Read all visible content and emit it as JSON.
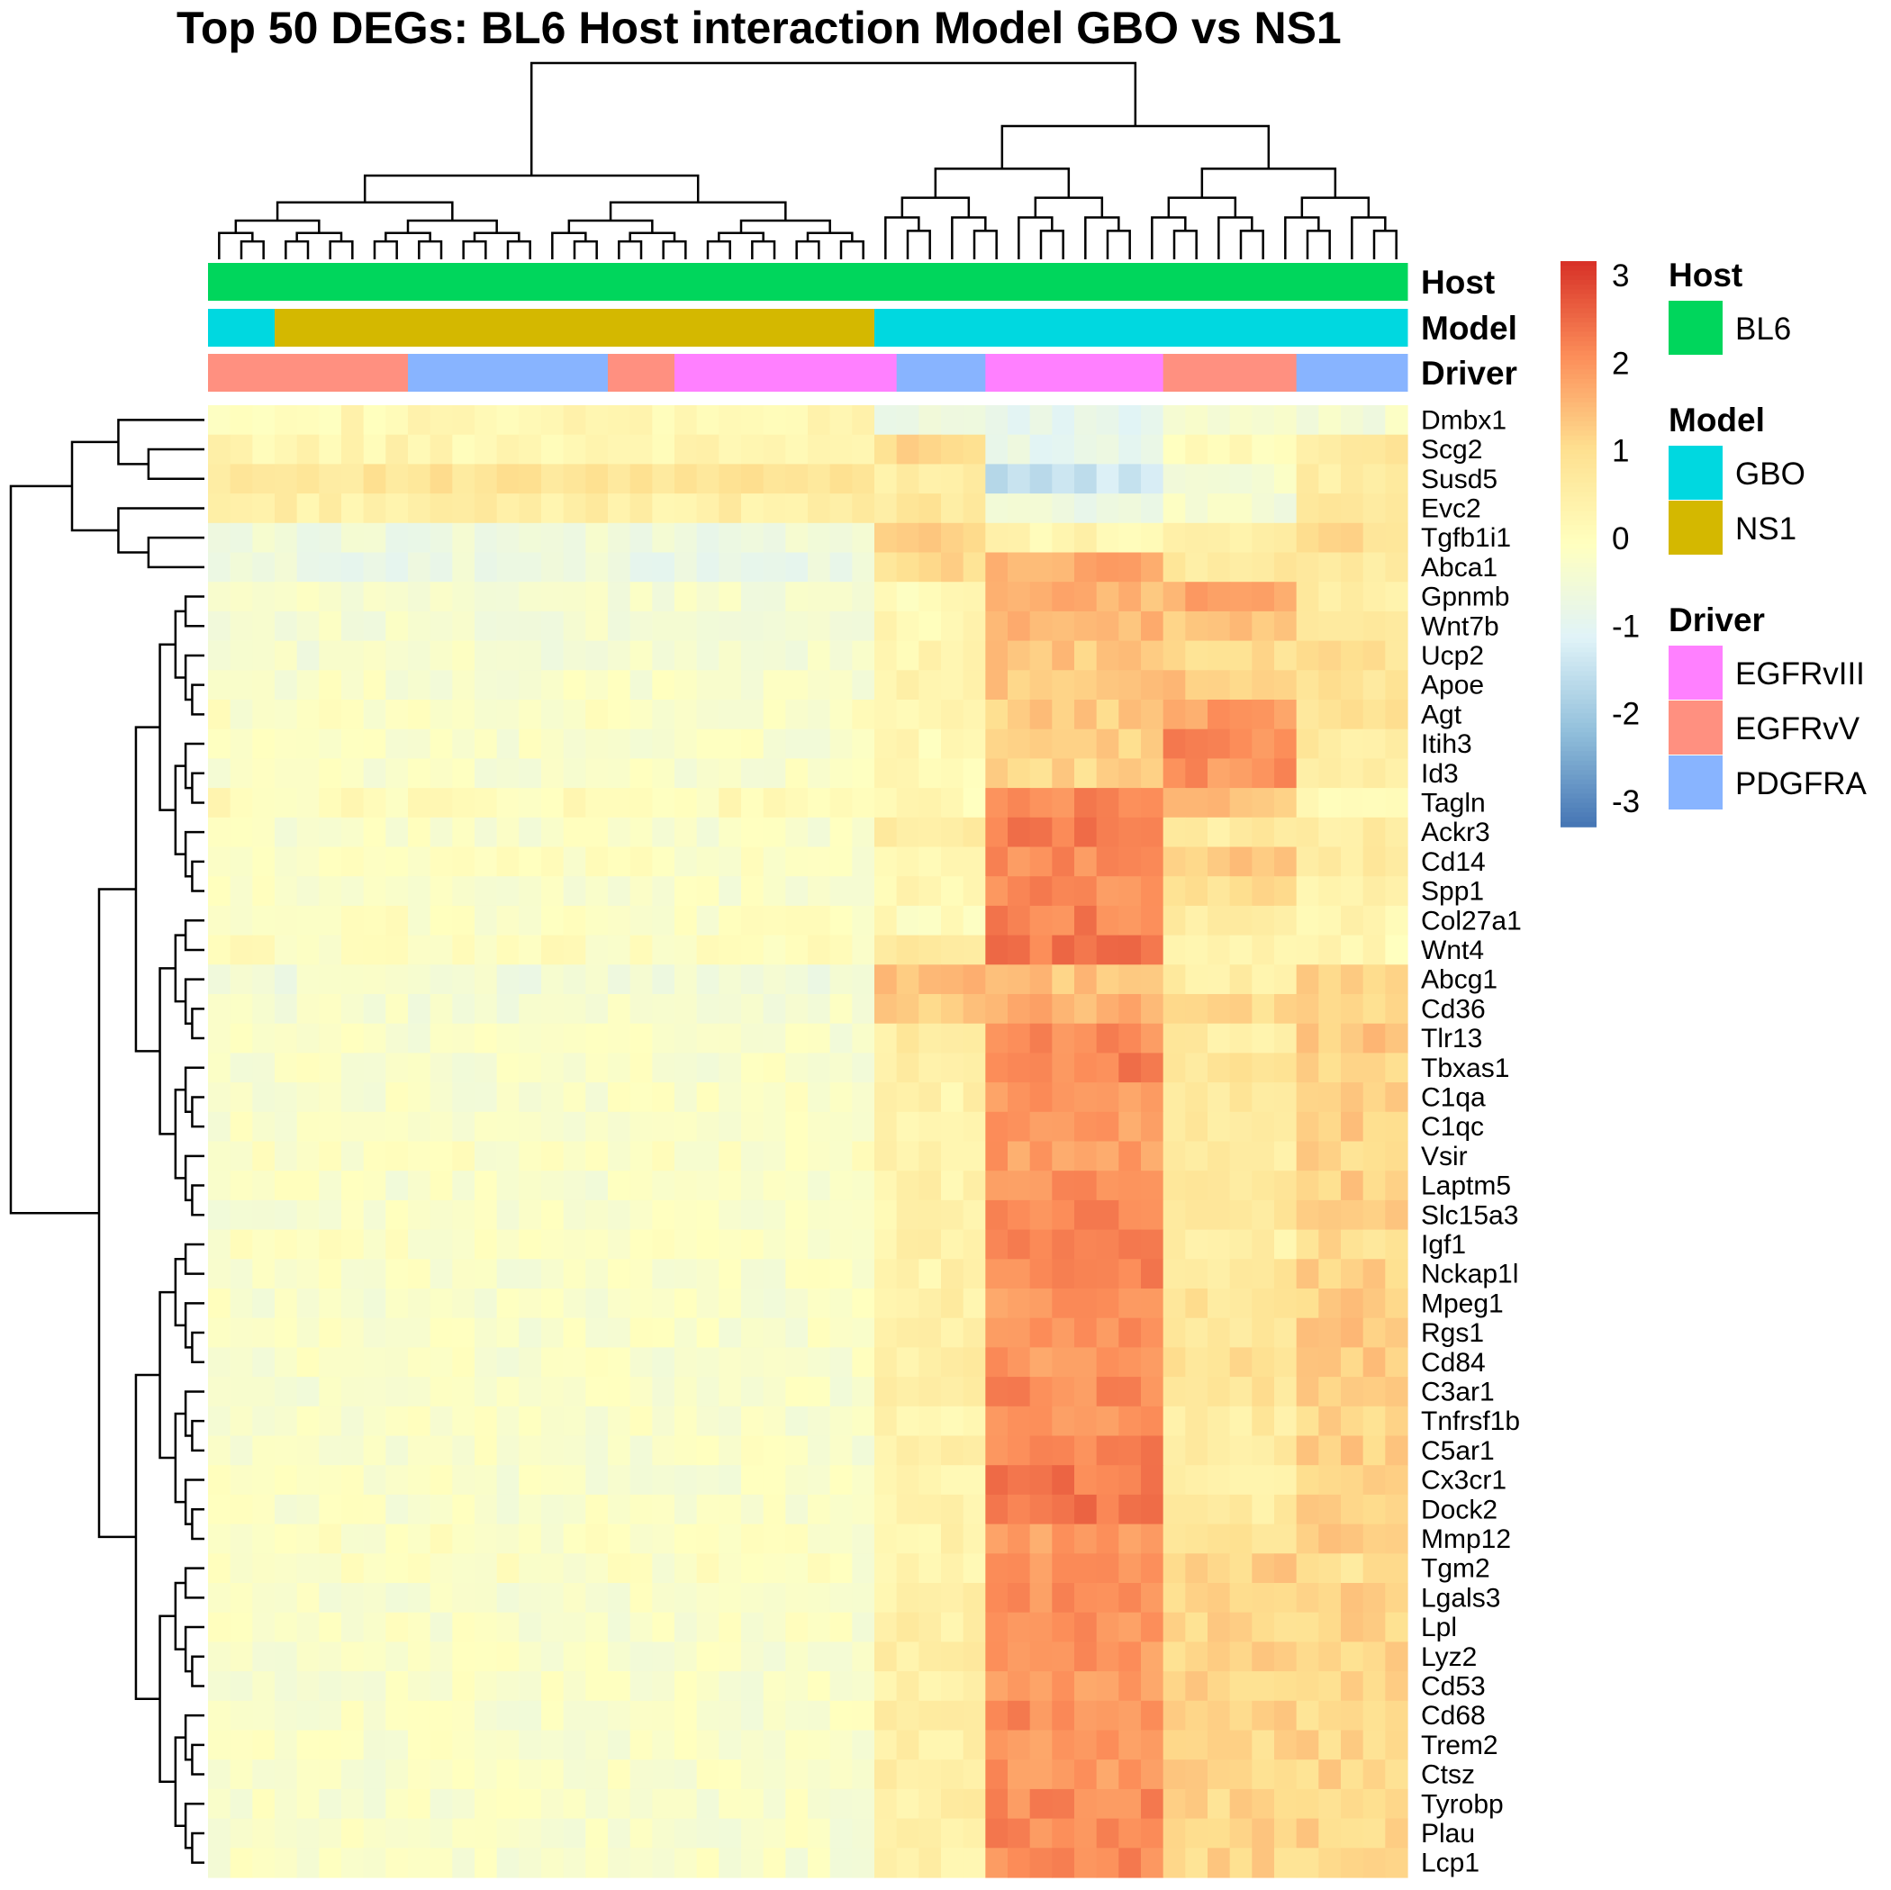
{
  "chart_data": {
    "type": "heatmap",
    "title": "Top 50 DEGs: BL6 Host interaction Model GBO vs NS1",
    "rows": [
      "Dmbx1",
      "Scg2",
      "Susd5",
      "Evc2",
      "Tgfb1i1",
      "Abca1",
      "Gpnmb",
      "Wnt7b",
      "Ucp2",
      "Apoe",
      "Agt",
      "Itih3",
      "Id3",
      "Tagln",
      "Ackr3",
      "Cd14",
      "Spp1",
      "Col27a1",
      "Wnt4",
      "Abcg1",
      "Cd36",
      "Tlr13",
      "Tbxas1",
      "C1qa",
      "C1qc",
      "Vsir",
      "Laptm5",
      "Slc15a3",
      "Igf1",
      "Nckap1l",
      "Mpeg1",
      "Rgs1",
      "Cd84",
      "C3ar1",
      "Tnfrsf1b",
      "C5ar1",
      "Cx3cr1",
      "Dock2",
      "Mmp12",
      "Tgm2",
      "Lgals3",
      "Lpl",
      "Lyz2",
      "Cd53",
      "Cd68",
      "Trem2",
      "Ctsz",
      "Tyrobp",
      "Plau",
      "Lcp1"
    ],
    "n_columns": 54,
    "color_scale": {
      "range": [
        -3,
        3
      ],
      "ticks": [
        "3",
        "2",
        "1",
        "0",
        "-1",
        "-2",
        "-3"
      ],
      "colors": [
        "#4575b4",
        "#91bfdb",
        "#e0f3f8",
        "#ffffbf",
        "#fee090",
        "#fc8d59",
        "#d73027"
      ]
    },
    "annotation_tracks": [
      "Host",
      "Model",
      "Driver"
    ],
    "column_annotations": {
      "Host": [
        {
          "label": "BL6",
          "from": 0,
          "to": 54
        }
      ],
      "Model": [
        {
          "label": "GBO",
          "from": 0,
          "to": 3
        },
        {
          "label": "NS1",
          "from": 3,
          "to": 30
        },
        {
          "label": "GBO",
          "from": 30,
          "to": 54
        }
      ],
      "Driver": [
        {
          "label": "EGFRvV",
          "from": 0,
          "to": 9
        },
        {
          "label": "PDGFRA",
          "from": 9,
          "to": 18
        },
        {
          "label": "EGFRvV",
          "from": 18,
          "to": 21
        },
        {
          "label": "EGFRvIII",
          "from": 21,
          "to": 31
        },
        {
          "label": "PDGFRA",
          "from": 31,
          "to": 35
        },
        {
          "label": "EGFRvIII",
          "from": 35,
          "to": 43
        },
        {
          "label": "EGFRvV",
          "from": 43,
          "to": 49
        },
        {
          "label": "PDGFRA",
          "from": 49,
          "to": 54
        }
      ]
    },
    "annotation_legend": [
      {
        "title": "Host",
        "items": [
          {
            "label": "BL6",
            "color": "#00d65c"
          }
        ]
      },
      {
        "title": "Model",
        "items": [
          {
            "label": "GBO",
            "color": "#00d8e0"
          },
          {
            "label": "NS1",
            "color": "#d4b800"
          }
        ]
      },
      {
        "title": "Driver",
        "items": [
          {
            "label": "EGFRvIII",
            "color": "#ff80ff"
          },
          {
            "label": "EGFRvV",
            "color": "#ff9080"
          },
          {
            "label": "PDGFRA",
            "color": "#88b4ff"
          }
        ]
      }
    ],
    "block_means": {
      "column_groups": [
        [
          0,
          30
        ],
        [
          30,
          35
        ],
        [
          35,
          43
        ],
        [
          43,
          49
        ],
        [
          49,
          54
        ]
      ],
      "values": [
        [
          0.2,
          -0.6,
          -0.8,
          -0.3,
          -0.3
        ],
        [
          0.3,
          1.0,
          -0.7,
          0.2,
          0.7
        ],
        [
          0.8,
          0.6,
          -1.3,
          -0.3,
          0.5
        ],
        [
          0.5,
          0.7,
          -0.6,
          -0.3,
          0.8
        ],
        [
          -0.5,
          1.2,
          0.3,
          0.5,
          1.0
        ],
        [
          -0.6,
          1.0,
          1.6,
          0.7,
          0.7
        ],
        [
          -0.3,
          0.2,
          1.5,
          1.7,
          0.6
        ],
        [
          -0.3,
          0.2,
          1.4,
          1.3,
          0.8
        ],
        [
          -0.3,
          0.3,
          1.3,
          0.9,
          0.9
        ],
        [
          -0.2,
          0.3,
          1.3,
          1.3,
          0.8
        ],
        [
          -0.1,
          0.3,
          1.2,
          1.8,
          0.9
        ],
        [
          -0.2,
          0.2,
          1.2,
          2.0,
          0.6
        ],
        [
          -0.2,
          0.2,
          1.1,
          1.9,
          0.5
        ],
        [
          0.1,
          0.2,
          2.0,
          1.3,
          0.3
        ],
        [
          -0.2,
          0.7,
          2.2,
          0.6,
          0.6
        ],
        [
          -0.1,
          0.3,
          2.0,
          1.2,
          0.6
        ],
        [
          -0.2,
          0.2,
          2.0,
          0.9,
          0.5
        ],
        [
          -0.1,
          0.1,
          2.1,
          0.5,
          0.3
        ],
        [
          0.0,
          0.6,
          2.2,
          0.3,
          0.2
        ],
        [
          -0.4,
          1.4,
          1.3,
          0.5,
          1.1
        ],
        [
          -0.3,
          1.2,
          1.6,
          1.0,
          1.2
        ],
        [
          -0.2,
          0.6,
          2.0,
          0.6,
          1.3
        ],
        [
          -0.2,
          0.5,
          2.1,
          0.8,
          1.2
        ],
        [
          -0.2,
          0.4,
          1.8,
          0.7,
          1.2
        ],
        [
          -0.2,
          0.4,
          1.8,
          0.7,
          1.2
        ],
        [
          -0.1,
          0.4,
          1.8,
          0.6,
          1.1
        ],
        [
          -0.2,
          0.4,
          1.9,
          0.7,
          1.2
        ],
        [
          -0.2,
          0.4,
          2.1,
          0.7,
          1.1
        ],
        [
          -0.1,
          0.4,
          2.0,
          0.5,
          1.0
        ],
        [
          -0.2,
          0.4,
          2.1,
          0.7,
          1.2
        ],
        [
          -0.2,
          0.5,
          1.9,
          0.8,
          1.2
        ],
        [
          -0.2,
          0.5,
          1.9,
          0.8,
          1.3
        ],
        [
          -0.2,
          0.5,
          1.9,
          0.9,
          1.2
        ],
        [
          -0.2,
          0.5,
          2.0,
          0.8,
          1.2
        ],
        [
          -0.2,
          0.4,
          2.0,
          0.6,
          1.1
        ],
        [
          -0.2,
          0.4,
          2.1,
          0.6,
          1.2
        ],
        [
          -0.2,
          0.4,
          2.2,
          0.6,
          1.1
        ],
        [
          -0.2,
          0.4,
          2.3,
          0.6,
          1.1
        ],
        [
          -0.1,
          0.4,
          1.8,
          0.8,
          1.4
        ],
        [
          -0.1,
          0.3,
          1.8,
          1.2,
          0.9
        ],
        [
          -0.2,
          0.5,
          1.9,
          1.0,
          1.2
        ],
        [
          -0.2,
          0.5,
          1.9,
          1.1,
          1.1
        ],
        [
          -0.2,
          0.5,
          1.9,
          1.1,
          1.1
        ],
        [
          -0.2,
          0.5,
          1.9,
          1.1,
          1.1
        ],
        [
          -0.2,
          0.5,
          2.0,
          1.2,
          1.1
        ],
        [
          -0.2,
          0.5,
          1.9,
          1.1,
          1.1
        ],
        [
          -0.2,
          0.5,
          1.9,
          1.1,
          1.1
        ],
        [
          -0.2,
          0.5,
          2.0,
          1.1,
          1.1
        ],
        [
          -0.2,
          0.5,
          2.0,
          1.1,
          1.1
        ],
        [
          -0.2,
          0.5,
          2.0,
          1.1,
          1.1
        ]
      ]
    },
    "column_dendrogram": true,
    "row_dendrogram": true,
    "legend_placement": "right"
  }
}
